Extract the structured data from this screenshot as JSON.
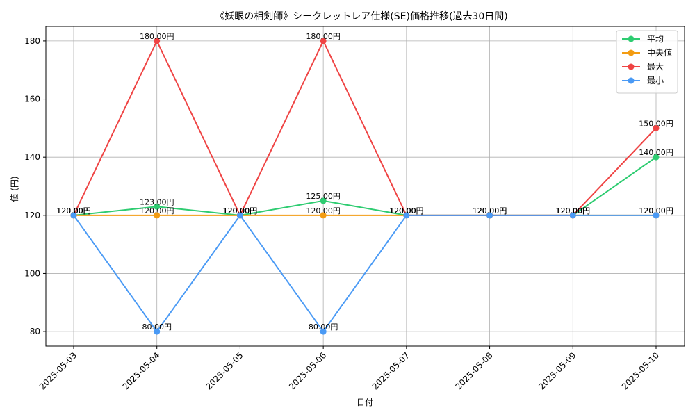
{
  "chart_data": {
    "type": "line",
    "title": "《妖眼の相剣師》シークレットレア仕様(SE)価格推移(過去30日間)",
    "xlabel": "日付",
    "ylabel": "値 (円)",
    "categories": [
      "2025-05-03",
      "2025-05-04",
      "2025-05-05",
      "2025-05-06",
      "2025-05-07",
      "2025-05-08",
      "2025-05-09",
      "2025-05-10"
    ],
    "ylim": [
      75,
      185
    ],
    "yticks": [
      80,
      100,
      120,
      140,
      160,
      180
    ],
    "grid": true,
    "legend_position": "top-right",
    "series": [
      {
        "name": "平均",
        "color": "#2ecc71",
        "values": [
          120,
          123,
          120,
          125,
          120,
          120,
          120,
          140
        ],
        "labels": [
          "120.00円",
          "123.00円",
          "120.00円",
          "125.00円",
          "120.00円",
          "120.00円",
          "120.00円",
          "140.00円"
        ]
      },
      {
        "name": "中央値",
        "color": "#f39c12",
        "values": [
          120,
          120,
          120,
          120,
          120,
          120,
          120,
          120
        ],
        "labels": [
          "120.00円",
          "120.00円",
          "120.00円",
          "120.00円",
          "120.00円",
          "120.00円",
          "120.00円",
          "120.00円"
        ]
      },
      {
        "name": "最大",
        "color": "#ef4444",
        "values": [
          120,
          180,
          120,
          180,
          120,
          120,
          120,
          150
        ],
        "labels": [
          "120.00円",
          "180.00円",
          "120.00円",
          "180.00円",
          "120.00円",
          "120.00円",
          "120.00円",
          "150.00円"
        ]
      },
      {
        "name": "最小",
        "color": "#4a9af5",
        "values": [
          120,
          80,
          120,
          80,
          120,
          120,
          120,
          120
        ],
        "labels": [
          "120.00円",
          "80.00円",
          "120.00円",
          "80.00円",
          "120.00円",
          "120.00円",
          "120.00円",
          "120.00円"
        ]
      }
    ]
  }
}
